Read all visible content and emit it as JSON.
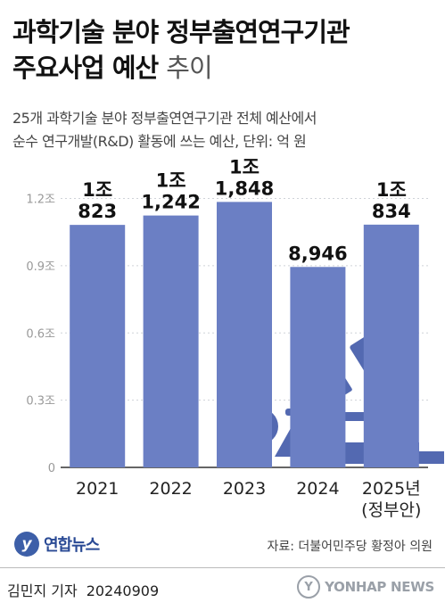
{
  "title": {
    "line1": "과학기술 분야 정부출연연구기관",
    "line2_bold": "주요사업 예산",
    "line2_light": "추이"
  },
  "subtitle": {
    "line1": "25개 과학기술 분야 정부출연연구기관 전체 예산에서",
    "line2": "순수 연구개발(R&D) 활동에 쓰는 예산, 단위: 억 원"
  },
  "chart_data": {
    "type": "bar",
    "title": "과학기술 분야 정부출연연구기관 주요사업 예산 추이",
    "ylabel": "",
    "ylim": [
      0,
      12500
    ],
    "yticks": [
      {
        "value": 0,
        "label": "0"
      },
      {
        "value": 3000,
        "label": "0.3조"
      },
      {
        "value": 6000,
        "label": "0.6조"
      },
      {
        "value": 9000,
        "label": "0.9조"
      },
      {
        "value": 12000,
        "label": "1.2조"
      }
    ],
    "bar_color": "#6b7fc4",
    "series": [
      {
        "values": [
          10823,
          11242,
          11848,
          8946,
          10834
        ],
        "value_labels": [
          [
            "1조",
            "823"
          ],
          [
            "1조",
            "1,242"
          ],
          [
            "1조",
            "1,848"
          ],
          [
            "8,946"
          ],
          [
            "1조",
            "834"
          ]
        ]
      }
    ],
    "categories": [
      [
        "2021"
      ],
      [
        "2022"
      ],
      [
        "2023"
      ],
      [
        "2024"
      ],
      [
        "2025년",
        "(정부안)"
      ]
    ]
  },
  "footer": {
    "logo_glyph": "y",
    "logo_text": "연합뉴스",
    "source": "자료: 더불어민주당 황정아 의원",
    "reporter": "김민지 기자",
    "date": "20240909",
    "watermark_glyph": "Y",
    "watermark_text": "YONHAP NEWS"
  },
  "decoration": {
    "icons": [
      "microscope-icon",
      "flask-icon",
      "beaker-icon"
    ],
    "icon_color": "#4a61ad"
  }
}
